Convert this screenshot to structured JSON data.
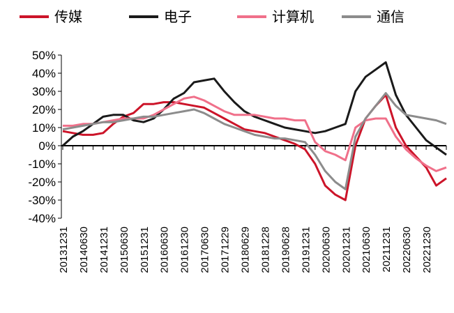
{
  "chart_data": {
    "type": "line",
    "categories": [
      "20131231",
      null,
      "20140630",
      null,
      "20141231",
      null,
      "20150630",
      null,
      "20151231",
      null,
      "20160630",
      null,
      "20161230",
      null,
      "20170630",
      null,
      "20171229",
      null,
      "20180629",
      null,
      "20181228",
      null,
      "20190628",
      null,
      "20191231",
      null,
      "20200630",
      null,
      "20201231",
      null,
      "20210630",
      null,
      "20211231",
      null,
      "20220630",
      null,
      "20221230",
      null,
      null
    ],
    "series": [
      {
        "name": "传媒",
        "color": "#cc1429",
        "values": [
          8,
          7,
          6,
          6,
          7,
          12,
          16,
          18,
          23,
          23,
          24,
          24,
          23,
          22,
          21,
          18,
          15,
          12,
          9,
          8,
          7,
          5,
          3,
          1,
          -2,
          -10,
          -22,
          -27,
          -30,
          0,
          15,
          22,
          28,
          10,
          0,
          -6,
          -12,
          -22,
          -18
        ]
      },
      {
        "name": "电子",
        "color": "#1a1a1a",
        "values": [
          0,
          5,
          8,
          12,
          16,
          17,
          17,
          14,
          13,
          15,
          20,
          26,
          29,
          35,
          36,
          37,
          30,
          24,
          19,
          16,
          14,
          12,
          10,
          9,
          8,
          7,
          8,
          10,
          12,
          30,
          38,
          42,
          46,
          28,
          17,
          10,
          3,
          -1,
          -5
        ]
      },
      {
        "name": "计算机",
        "color": "#f0708a",
        "values": [
          11,
          11,
          12,
          12,
          13,
          14,
          15,
          15,
          15,
          17,
          20,
          23,
          26,
          27,
          25,
          22,
          19,
          17,
          17,
          17,
          16,
          15,
          15,
          14,
          14,
          2,
          -3,
          -5,
          -8,
          10,
          14,
          15,
          15,
          5,
          -2,
          -7,
          -11,
          -14,
          -12
        ]
      },
      {
        "name": "通信",
        "color": "#8c8c8c",
        "values": [
          9,
          10,
          11,
          12,
          13,
          13,
          14,
          15,
          16,
          16,
          17,
          18,
          19,
          20,
          18,
          15,
          12,
          10,
          8,
          6,
          5,
          4,
          4,
          3,
          2,
          -5,
          -14,
          -20,
          -24,
          5,
          15,
          22,
          29,
          22,
          17,
          16,
          15,
          14,
          12
        ]
      }
    ],
    "ylim": [
      -40,
      50
    ],
    "yticks": [
      {
        "value": -40,
        "label": "-40%"
      },
      {
        "value": -30,
        "label": "-30%"
      },
      {
        "value": -20,
        "label": "-20%"
      },
      {
        "value": -10,
        "label": "-10%"
      },
      {
        "value": 0,
        "label": "0%"
      },
      {
        "value": 10,
        "label": "10%"
      },
      {
        "value": 20,
        "label": "20%"
      },
      {
        "value": 30,
        "label": "30%"
      },
      {
        "value": 40,
        "label": "40%"
      },
      {
        "value": 50,
        "label": "50%"
      }
    ]
  }
}
